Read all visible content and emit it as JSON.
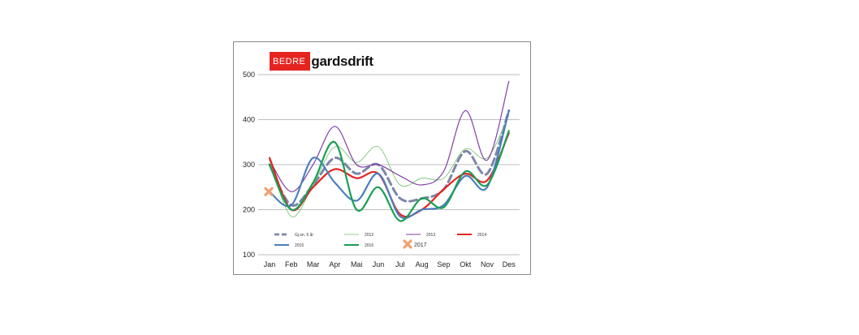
{
  "logo": {
    "part1": "BEDRE",
    "part2": "gardsdrift"
  },
  "colors": {
    "brand_red": "#e52420"
  },
  "chart_data": {
    "type": "line",
    "categories": [
      "Jan",
      "Feb",
      "Mar",
      "Apr",
      "Mai",
      "Jun",
      "Jul",
      "Aug",
      "Sep",
      "Okt",
      "Nov",
      "Des"
    ],
    "ylim": [
      100,
      500
    ],
    "yticks": [
      100,
      200,
      300,
      400,
      500
    ],
    "grid": true,
    "legend_position": "bottom-inside",
    "series": [
      {
        "name": "Gj.sn. 5 år",
        "color": "#7d86a8",
        "style": "dashed",
        "width": 3,
        "values": [
          300,
          210,
          255,
          315,
          280,
          300,
          225,
          225,
          245,
          330,
          280,
          420
        ]
      },
      {
        "name": "2012",
        "color": "#6fbf6a",
        "style": "solid",
        "width": 0.8,
        "values": [
          310,
          185,
          255,
          340,
          305,
          340,
          255,
          270,
          270,
          335,
          315,
          410
        ]
      },
      {
        "name": "2013",
        "color": "#8040a8",
        "style": "solid",
        "width": 1.2,
        "values": [
          310,
          240,
          300,
          385,
          300,
          300,
          275,
          255,
          285,
          420,
          310,
          485
        ]
      },
      {
        "name": "2014",
        "color": "#e52420",
        "style": "solid",
        "width": 2.2,
        "values": [
          315,
          200,
          250,
          290,
          270,
          280,
          190,
          200,
          245,
          280,
          265,
          370
        ]
      },
      {
        "name": "2015",
        "color": "#4a7fbf",
        "style": "solid",
        "width": 2.2,
        "values": [
          240,
          210,
          315,
          260,
          220,
          280,
          185,
          200,
          210,
          275,
          250,
          420
        ]
      },
      {
        "name": "2016",
        "color": "#1a9e55",
        "style": "solid",
        "width": 2.2,
        "values": [
          300,
          200,
          260,
          350,
          200,
          250,
          175,
          225,
          205,
          285,
          255,
          375
        ]
      },
      {
        "name": "2017",
        "color": "#f0a070",
        "style": "marker",
        "width": 0,
        "values": [
          240,
          null,
          null,
          null,
          null,
          null,
          null,
          null,
          null,
          null,
          null,
          null
        ]
      }
    ]
  }
}
